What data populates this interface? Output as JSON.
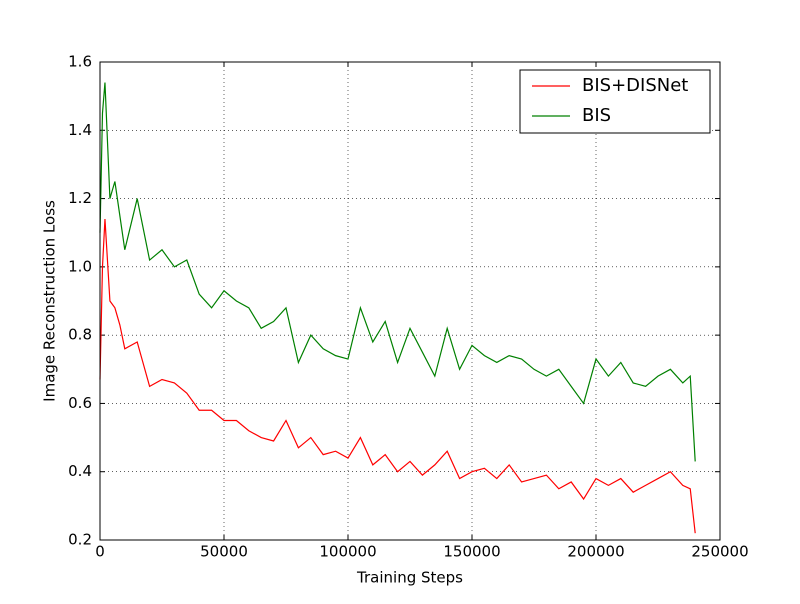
{
  "chart_data": {
    "type": "line",
    "x_label": "Training Steps",
    "y_label": "Image Reconstruction Loss",
    "x": [
      0,
      1000,
      2000,
      4000,
      6000,
      8000,
      10000,
      15000,
      20000,
      25000,
      30000,
      35000,
      40000,
      45000,
      50000,
      55000,
      60000,
      65000,
      70000,
      75000,
      80000,
      85000,
      90000,
      95000,
      100000,
      105000,
      110000,
      115000,
      120000,
      125000,
      130000,
      135000,
      140000,
      145000,
      150000,
      155000,
      160000,
      165000,
      170000,
      175000,
      180000,
      185000,
      190000,
      195000,
      200000,
      205000,
      210000,
      215000,
      220000,
      225000,
      230000,
      235000,
      238000,
      240000
    ],
    "series": [
      {
        "name": "BIS+DISNet",
        "color": "#ff0000",
        "values": [
          0.67,
          1.0,
          1.14,
          0.9,
          0.88,
          0.83,
          0.76,
          0.78,
          0.65,
          0.67,
          0.66,
          0.63,
          0.58,
          0.58,
          0.55,
          0.55,
          0.52,
          0.5,
          0.49,
          0.55,
          0.47,
          0.5,
          0.45,
          0.46,
          0.44,
          0.5,
          0.42,
          0.45,
          0.4,
          0.43,
          0.39,
          0.42,
          0.46,
          0.38,
          0.4,
          0.41,
          0.38,
          0.42,
          0.37,
          0.38,
          0.39,
          0.35,
          0.37,
          0.32,
          0.38,
          0.36,
          0.38,
          0.34,
          0.36,
          0.38,
          0.4,
          0.36,
          0.35,
          0.22
        ]
      },
      {
        "name": "BIS",
        "color": "#008000",
        "values": [
          1.1,
          1.45,
          1.54,
          1.2,
          1.25,
          1.15,
          1.05,
          1.2,
          1.02,
          1.05,
          1.0,
          1.02,
          0.92,
          0.88,
          0.93,
          0.9,
          0.88,
          0.82,
          0.84,
          0.88,
          0.72,
          0.8,
          0.76,
          0.74,
          0.73,
          0.88,
          0.78,
          0.84,
          0.72,
          0.82,
          0.75,
          0.68,
          0.82,
          0.7,
          0.77,
          0.74,
          0.72,
          0.74,
          0.73,
          0.7,
          0.68,
          0.7,
          0.65,
          0.6,
          0.73,
          0.68,
          0.72,
          0.66,
          0.65,
          0.68,
          0.7,
          0.66,
          0.68,
          0.43
        ]
      }
    ],
    "xlim": [
      0,
      250000
    ],
    "xticks": [
      0,
      50000,
      100000,
      150000,
      200000,
      250000
    ],
    "ylim": [
      0.2,
      1.6
    ],
    "yticks": [
      0.2,
      0.4,
      0.6,
      0.8,
      {
        "value": 1,
        "label": "1.0"
      },
      1.2,
      1.4,
      1.6
    ],
    "grid": true,
    "legend": "upper right"
  }
}
